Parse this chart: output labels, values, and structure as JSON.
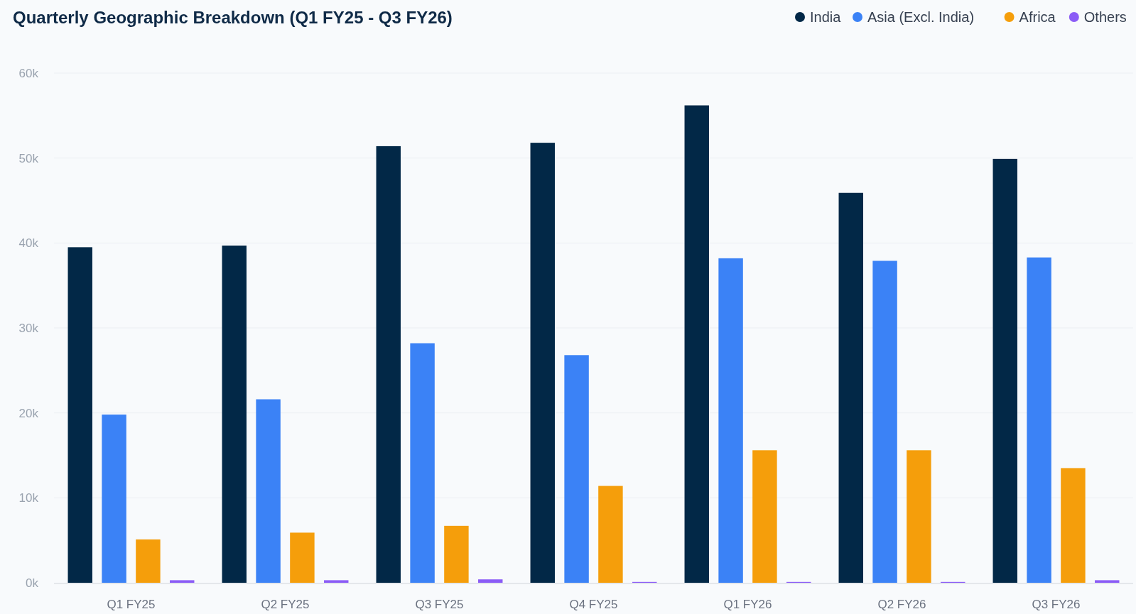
{
  "chart_data": {
    "type": "bar",
    "title": "Quarterly Geographic Breakdown (Q1 FY25 - Q3 FY26)",
    "categories": [
      "Q1 FY25",
      "Q2 FY25",
      "Q3 FY25",
      "Q4 FY25",
      "Q1 FY26",
      "Q2 FY26",
      "Q3 FY26"
    ],
    "series": [
      {
        "name": "India",
        "color": "#022847",
        "values": [
          39500,
          39700,
          51400,
          51800,
          56200,
          45900,
          49900
        ]
      },
      {
        "name": "Asia (Excl. India)",
        "color": "#3b82f6",
        "values": [
          19800,
          21600,
          28200,
          26800,
          38200,
          37900,
          38300
        ]
      },
      {
        "name": "Africa",
        "color": "#f59e0b",
        "values": [
          5100,
          5900,
          6700,
          11400,
          15600,
          15600,
          13500
        ]
      },
      {
        "name": "Others",
        "color": "#8b5cf6",
        "values": [
          300,
          300,
          400,
          100,
          100,
          100,
          300
        ]
      }
    ],
    "ylim": [
      0,
      60000
    ],
    "yticks": [
      {
        "value": 0,
        "label": "0k"
      },
      {
        "value": 10000,
        "label": "10k"
      },
      {
        "value": 20000,
        "label": "20k"
      },
      {
        "value": 30000,
        "label": "30k"
      },
      {
        "value": 40000,
        "label": "40k"
      },
      {
        "value": 50000,
        "label": "50k"
      },
      {
        "value": 60000,
        "label": "60k"
      }
    ],
    "grid": "y",
    "legend": "top right"
  }
}
